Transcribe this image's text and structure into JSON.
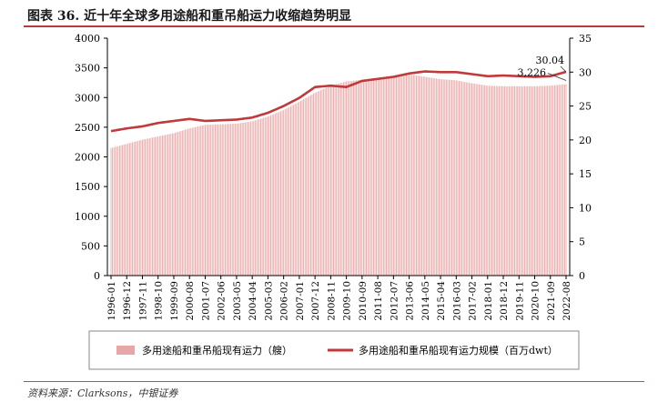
{
  "title": "图表 36. 近十年全球多用途船和重吊船运力收缩趋势明显",
  "source": "资料来源：Clarksons，中银证券",
  "chart_data": {
    "type": "bar+line",
    "left_axis": {
      "min": 0,
      "max": 4000,
      "ticks": [
        0,
        500,
        1000,
        1500,
        2000,
        2500,
        3000,
        3500,
        4000
      ]
    },
    "right_axis": {
      "min": 0,
      "max": 35,
      "ticks": [
        0,
        5,
        10,
        15,
        20,
        25,
        30,
        35
      ]
    },
    "x_labels": [
      "1996-01",
      "1996-12",
      "1997-11",
      "1998-10",
      "1999-09",
      "2000-08",
      "2001-07",
      "2002-06",
      "2003-05",
      "2004-04",
      "2005-03",
      "2006-02",
      "2007-01",
      "2007-12",
      "2008-11",
      "2009-10",
      "2010-09",
      "2011-08",
      "2012-07",
      "2013-06",
      "2014-05",
      "2015-04",
      "2016-03",
      "2017-02",
      "2018-01",
      "2018-12",
      "2019-11",
      "2020-10",
      "2021-09",
      "2022-08"
    ],
    "bar_series": {
      "name": "多用途船和重吊船现有运力（艘）",
      "color": "#e8a6a6",
      "anchors": [
        [
          "1996-01",
          2150
        ],
        [
          "1997-11",
          2290
        ],
        [
          "1999-09",
          2400
        ],
        [
          "2000-08",
          2480
        ],
        [
          "2001-07",
          2540
        ],
        [
          "2002-06",
          2550
        ],
        [
          "2003-05",
          2560
        ],
        [
          "2004-04",
          2600
        ],
        [
          "2005-03",
          2680
        ],
        [
          "2006-02",
          2790
        ],
        [
          "2007-01",
          2930
        ],
        [
          "2007-12",
          3080
        ],
        [
          "2008-11",
          3200
        ],
        [
          "2009-10",
          3270
        ],
        [
          "2010-09",
          3300
        ],
        [
          "2011-08",
          3320
        ],
        [
          "2012-07",
          3360
        ],
        [
          "2013-06",
          3390
        ],
        [
          "2014-05",
          3350
        ],
        [
          "2015-04",
          3310
        ],
        [
          "2016-03",
          3290
        ],
        [
          "2017-02",
          3240
        ],
        [
          "2018-01",
          3200
        ],
        [
          "2018-12",
          3190
        ],
        [
          "2019-11",
          3190
        ],
        [
          "2020-10",
          3190
        ],
        [
          "2021-09",
          3200
        ],
        [
          "2022-08",
          3226
        ]
      ]
    },
    "line_series": {
      "name": "多用途船和重吊船现有运力规模（百万dwt）",
      "color": "#c0393b",
      "anchors": [
        [
          "1996-01",
          21.3
        ],
        [
          "1996-12",
          21.7
        ],
        [
          "1997-11",
          22.0
        ],
        [
          "1998-10",
          22.5
        ],
        [
          "1999-09",
          22.8
        ],
        [
          "2000-08",
          23.1
        ],
        [
          "2001-07",
          22.8
        ],
        [
          "2002-06",
          22.9
        ],
        [
          "2003-05",
          23.0
        ],
        [
          "2004-04",
          23.3
        ],
        [
          "2005-03",
          24.0
        ],
        [
          "2006-02",
          25.0
        ],
        [
          "2007-01",
          26.2
        ],
        [
          "2007-12",
          27.8
        ],
        [
          "2008-11",
          28.0
        ],
        [
          "2009-10",
          27.8
        ],
        [
          "2010-09",
          28.7
        ],
        [
          "2011-08",
          29.0
        ],
        [
          "2012-07",
          29.3
        ],
        [
          "2013-06",
          29.8
        ],
        [
          "2014-05",
          30.1
        ],
        [
          "2015-04",
          30.0
        ],
        [
          "2016-03",
          30.0
        ],
        [
          "2017-02",
          29.7
        ],
        [
          "2018-01",
          29.4
        ],
        [
          "2018-12",
          29.5
        ],
        [
          "2019-11",
          29.4
        ],
        [
          "2020-10",
          29.3
        ],
        [
          "2021-09",
          29.4
        ],
        [
          "2022-08",
          30.04
        ]
      ]
    },
    "annotations": [
      {
        "label": "30.04",
        "series": "line",
        "at": "2022-08"
      },
      {
        "label": "3,226",
        "series": "bar",
        "at": "2022-08"
      }
    ],
    "legend_position": "bottom",
    "grid": false
  }
}
